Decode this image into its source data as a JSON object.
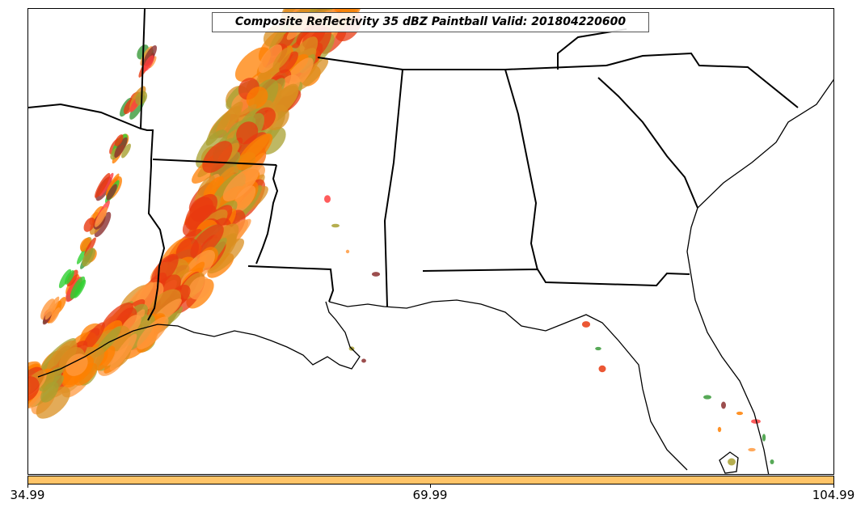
{
  "title": "Composite Reflectivity 35 dBZ Paintball Valid: 201804220600",
  "colorbar": {
    "color": "#ffc468",
    "ticks": [
      "34.99",
      "69.99",
      "104.99"
    ]
  },
  "paintball_colors": [
    "#ff4040",
    "#e83a10",
    "#ff7f00",
    "#ff9a40",
    "#d98f20",
    "#a8a030",
    "#3a9a3a",
    "#30d030",
    "#8b2f2f"
  ]
}
